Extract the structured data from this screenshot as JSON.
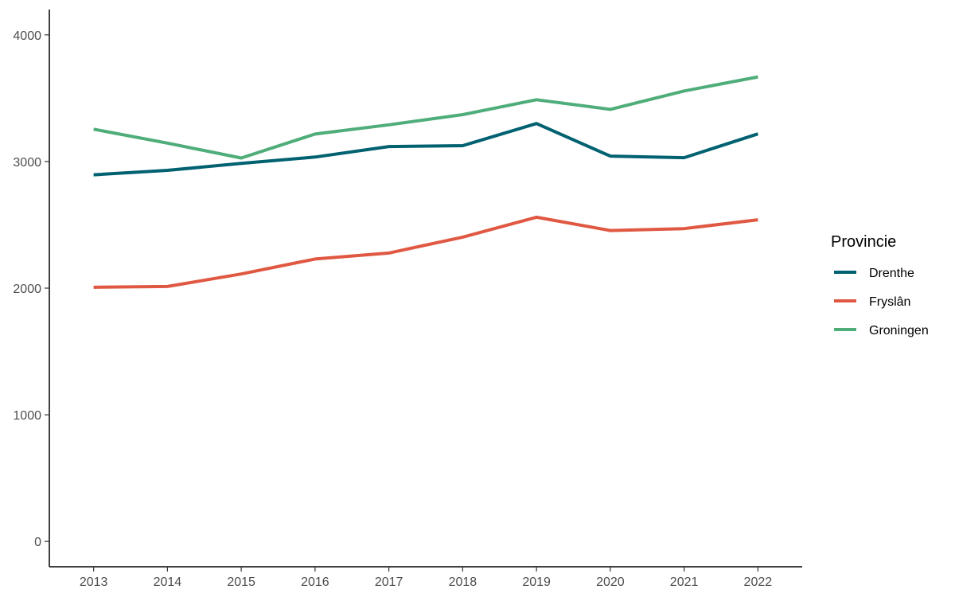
{
  "chart_data": {
    "type": "line",
    "x": [
      2013,
      2014,
      2015,
      2016,
      2017,
      2018,
      2019,
      2020,
      2021,
      2022
    ],
    "x_tick_labels": [
      "2013",
      "2014",
      "2015",
      "2016",
      "2017",
      "2018",
      "2019",
      "2020",
      "2021",
      "2022"
    ],
    "y_ticks": [
      0,
      1000,
      2000,
      3000,
      4000
    ],
    "y_tick_labels": [
      "0",
      "1000",
      "2000",
      "3000",
      "4000"
    ],
    "ylim": [
      -200,
      4200
    ],
    "xlim": [
      2012.4,
      2022.6
    ],
    "grid": false,
    "legend_placement": "right",
    "legend_title": "Provincie",
    "series": [
      {
        "name": "Drenthe",
        "color": "#006170",
        "values": [
          2895,
          2930,
          2985,
          3035,
          3118,
          3125,
          3300,
          3043,
          3030,
          3218
        ]
      },
      {
        "name": "Fryslân",
        "color": "#e05842",
        "values": [
          2007,
          2013,
          2112,
          2230,
          2277,
          2403,
          2560,
          2455,
          2470,
          2540
        ]
      },
      {
        "name": "Groningen",
        "color": "#4fad7a",
        "values": [
          3255,
          3145,
          3028,
          3217,
          3290,
          3370,
          3488,
          3412,
          3557,
          3668
        ]
      }
    ]
  }
}
